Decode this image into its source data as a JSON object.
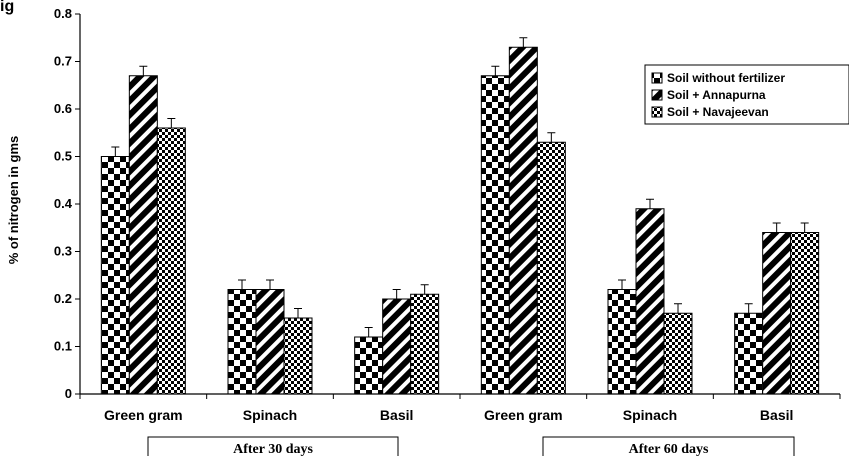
{
  "chart_data": {
    "type": "bar",
    "title": "ig",
    "ylabel": "% of nitrogen in gms",
    "xlabel": "",
    "ylim": [
      0,
      0.8
    ],
    "ytick_step": 0.1,
    "y_ticks": [
      "0",
      "0.1",
      "0.2",
      "0.3",
      "0.4",
      "0.5",
      "0.6",
      "0.7",
      "0.8"
    ],
    "categories": [
      "Green gram",
      "Spinach",
      "Basil",
      "Green gram",
      "Spinach",
      "Basil"
    ],
    "groups": [
      {
        "label": "After 30 days",
        "categories": [
          "Green gram",
          "Spinach",
          "Basil"
        ]
      },
      {
        "label": "After 60 days",
        "categories": [
          "Green gram",
          "Spinach",
          "Basil"
        ]
      }
    ],
    "series": [
      {
        "name": "Soil without fertilizer",
        "pattern": "checker",
        "values": [
          0.5,
          0.22,
          0.12,
          0.67,
          0.22,
          0.17
        ],
        "errors": [
          0.02,
          0.02,
          0.02,
          0.02,
          0.02,
          0.02
        ]
      },
      {
        "name": "Soil + Annapurna",
        "pattern": "diagonal",
        "values": [
          0.67,
          0.22,
          0.2,
          0.73,
          0.39,
          0.34
        ],
        "errors": [
          0.02,
          0.02,
          0.02,
          0.02,
          0.02,
          0.02
        ]
      },
      {
        "name": "Soil  + Navajeevan",
        "pattern": "fine-checker",
        "values": [
          0.56,
          0.16,
          0.21,
          0.53,
          0.17,
          0.34
        ],
        "errors": [
          0.02,
          0.02,
          0.02,
          0.02,
          0.02,
          0.02
        ]
      }
    ],
    "legend_position": "top-right",
    "grid": false,
    "colors": {
      "ink": "#000000",
      "background": "#ffffff"
    }
  }
}
